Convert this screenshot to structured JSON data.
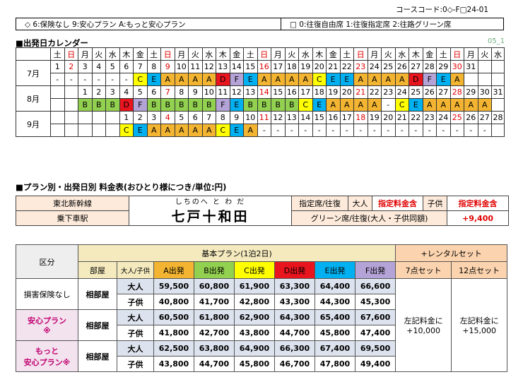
{
  "course_code": "コースコード:0◇-F□24-01",
  "legend": {
    "plans": "◇ 6:保険なし 9:安心プラン A:もっと安心プラン",
    "seats": "□ 0:往復自由席 1:往復指定席 2:往路グリーン席"
  },
  "calendar": {
    "title": "■出発日カレンダー",
    "page_id": "05_1",
    "weekdays": [
      "土",
      "日",
      "月",
      "火",
      "水",
      "木",
      "金",
      "土",
      "日",
      "月",
      "火",
      "水",
      "木",
      "金",
      "土",
      "日",
      "月",
      "火",
      "水",
      "木",
      "金",
      "土",
      "日",
      "月",
      "火",
      "水",
      "木",
      "金",
      "土",
      "日",
      "月",
      "火",
      "水"
    ],
    "months": [
      {
        "label": "7月",
        "days": [
          "1",
          "2",
          "3",
          "4",
          "5",
          "6",
          "7",
          "8",
          "9",
          "10",
          "11",
          "12",
          "13",
          "14",
          "15",
          "16",
          "17",
          "18",
          "19",
          "20",
          "21",
          "22",
          "23",
          "24",
          "25",
          "26",
          "27",
          "28",
          "29",
          "30",
          "31",
          "",
          ""
        ],
        "codes": [
          "-",
          "-",
          "-",
          "-",
          "-",
          "-",
          "C",
          "E",
          "A",
          "A",
          "A",
          "A",
          "D",
          "F",
          "E",
          "A",
          "A",
          "A",
          "A",
          "C",
          "E",
          "E",
          "A",
          "A",
          "A",
          "A",
          "D",
          "F",
          "E",
          "A",
          "",
          "",
          ""
        ]
      },
      {
        "label": "8月",
        "days": [
          "",
          "",
          "",
          "",
          "",
          "",
          "",
          "",
          "",
          "",
          "",
          "",
          "",
          "",
          "",
          "",
          "",
          "",
          "",
          "",
          "",
          "",
          "",
          "",
          "",
          "",
          "",
          "",
          "",
          "",
          "",
          "",
          ""
        ],
        "days2": [
          "",
          "",
          "",
          "1",
          "2",
          "3",
          "4",
          "5",
          "6",
          "7",
          "8",
          "9",
          "10",
          "11",
          "12",
          "13",
          "14",
          "15",
          "16",
          "17",
          "18",
          "19",
          "20",
          "21",
          "22",
          "23",
          "24",
          "25",
          "26",
          "27",
          "28",
          "29",
          "30",
          "31"
        ],
        "codes": [
          "",
          "",
          "",
          "B",
          "B",
          "B",
          "D",
          "F",
          "B",
          "B",
          "B",
          "B",
          "B",
          "F",
          "E",
          "B",
          "B",
          "B",
          "B",
          "C",
          "E",
          "A",
          "A",
          "A",
          "A",
          "-",
          "C",
          "E",
          "A",
          "A",
          "A",
          "A",
          "A",
          ""
        ]
      },
      {
        "label": "9月",
        "days2": [
          "",
          "",
          "",
          "",
          "",
          "",
          "",
          "1",
          "2",
          "3",
          "4",
          "5",
          "6",
          "7",
          "8",
          "9",
          "10",
          "11",
          "12",
          "13",
          "14",
          "15",
          "16",
          "17",
          "18",
          "19",
          "20",
          "21",
          "22",
          "23",
          "24",
          "25",
          "26",
          "27",
          "28"
        ],
        "codes": [
          "",
          "",
          "",
          "",
          "",
          "",
          "",
          "C",
          "E",
          "A",
          "A",
          "A",
          "A",
          "A",
          "C",
          "E",
          "A",
          "-",
          "-",
          "-",
          "-",
          "-",
          "-",
          "-",
          "-",
          "-",
          "-",
          "-",
          "-",
          "-",
          "-",
          "-",
          "-",
          "-",
          ""
        ]
      }
    ]
  },
  "fare": {
    "title": "■プラン別・出発日別 料金表(おひとり様につき/単位:円)",
    "line": "東北新幹線",
    "station_label": "乗下車駅",
    "furigana": "しちのへ と わ だ",
    "station": "七戸十和田",
    "reserved": "指定席/往復",
    "adult": "大人",
    "adult_note": "指定料金含",
    "child": "子供",
    "child_note": "指定料金含",
    "green": "グリーン席/往復(大人・子供同額)",
    "green_price": "+9,400"
  },
  "price_table": {
    "kubun": "区分",
    "basic_plan": "基本プラン(1泊2日)",
    "rental": "+レンタルセット",
    "room": "部屋",
    "age": "大人/子供",
    "plans": [
      "A出発",
      "B出発",
      "C出発",
      "D出発",
      "E出発",
      "F出発"
    ],
    "rentals": [
      "7点セット",
      "12点セット"
    ],
    "rental_note1a": "左記料金に",
    "rental_note1b": "+10,000",
    "rental_note2a": "左記料金に",
    "rental_note2b": "+15,000",
    "groups": [
      {
        "name": "損害保険なし",
        "name2": "",
        "room": "相部屋",
        "rows": [
          {
            "age": "大人",
            "prices": [
              "59,500",
              "60,800",
              "61,900",
              "63,300",
              "64,400",
              "66,600"
            ]
          },
          {
            "age": "子供",
            "prices": [
              "40,800",
              "41,700",
              "42,800",
              "43,300",
              "44,300",
              "45,300"
            ]
          }
        ]
      },
      {
        "name": "安心プラン",
        "name2": "※",
        "room": "相部屋",
        "rows": [
          {
            "age": "大人",
            "prices": [
              "60,500",
              "61,800",
              "62,900",
              "64,300",
              "65,400",
              "67,600"
            ]
          },
          {
            "age": "子供",
            "prices": [
              "41,800",
              "42,700",
              "43,800",
              "44,700",
              "45,800",
              "47,400"
            ]
          }
        ]
      },
      {
        "name": "もっと",
        "name2": "安心プラン※",
        "room": "相部屋",
        "rows": [
          {
            "age": "大人",
            "prices": [
              "62,500",
              "63,800",
              "64,900",
              "66,300",
              "67,400",
              "69,500"
            ]
          },
          {
            "age": "子供",
            "prices": [
              "43,800",
              "44,700",
              "45,800",
              "46,700",
              "47,800",
              "49,400"
            ]
          }
        ]
      }
    ]
  },
  "colors": {
    "A": "#f2b431",
    "B": "#92d050",
    "C": "#ffff00",
    "D": "#e8141e",
    "E": "#00b0f0",
    "F": "#b4a3d6",
    "red": "#e00000"
  }
}
